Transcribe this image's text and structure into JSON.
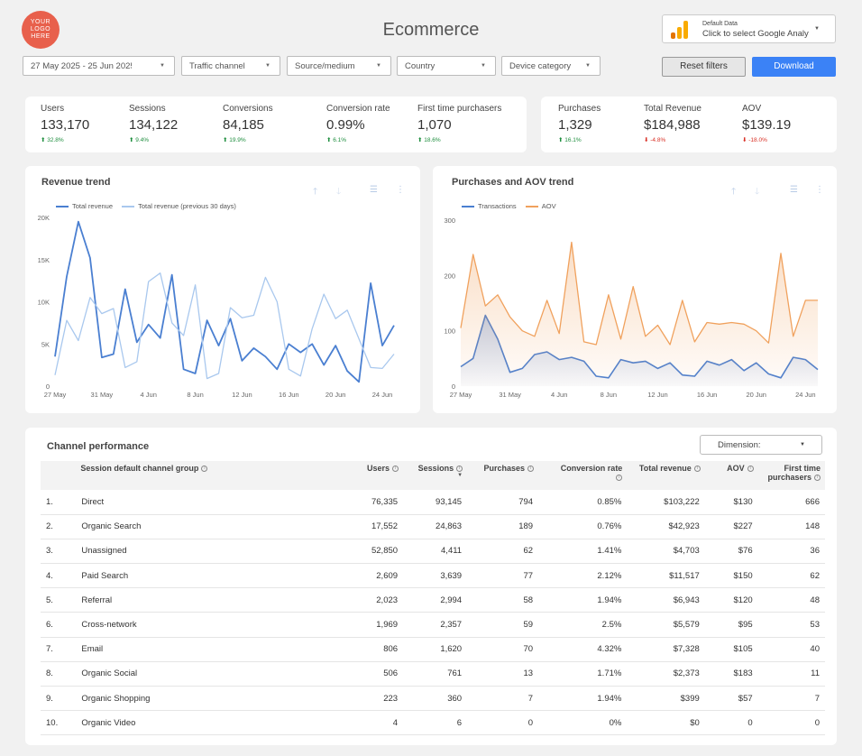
{
  "header": {
    "logo_lines": [
      "YOUR",
      "LOGO",
      "HERE"
    ],
    "title": "Ecommerce",
    "data_source": {
      "label": "Default Data",
      "value": "Click to select Google Analytics"
    }
  },
  "filters": {
    "date_range": "27 May 2025 - 25 Jun 2025",
    "traffic_channel": "Traffic channel",
    "source_medium": "Source/medium",
    "country": "Country",
    "device_category": "Device category",
    "reset_label": "Reset filters",
    "download_label": "Download"
  },
  "kpis_left": [
    {
      "label": "Users",
      "value": "133,170",
      "change": "32.8%",
      "dir": "up"
    },
    {
      "label": "Sessions",
      "value": "134,122",
      "change": "9.4%",
      "dir": "up"
    },
    {
      "label": "Conversions",
      "value": "84,185",
      "change": "19.9%",
      "dir": "up"
    },
    {
      "label": "Conversion rate",
      "value": "0.99%",
      "change": "6.1%",
      "dir": "up"
    },
    {
      "label": "First time purchasers",
      "value": "1,070",
      "change": "18.6%",
      "dir": "up"
    }
  ],
  "kpis_right": [
    {
      "label": "Purchases",
      "value": "1,329",
      "change": "16.1%",
      "dir": "up"
    },
    {
      "label": "Total Revenue",
      "value": "$184,988",
      "change": "-4.8%",
      "dir": "down"
    },
    {
      "label": "AOV",
      "value": "$139.19",
      "change": "-18.0%",
      "dir": "down"
    }
  ],
  "colors": {
    "primary_line": "#4a7fd1",
    "secondary_line": "#a9c8ee",
    "aov_line": "#f0a15d",
    "accent": "#3b82f6"
  },
  "chart_data": [
    {
      "type": "line",
      "title": "Revenue trend",
      "x": [
        "27 May",
        "28 May",
        "29 May",
        "30 May",
        "31 May",
        "1 Jun",
        "2 Jun",
        "3 Jun",
        "4 Jun",
        "5 Jun",
        "6 Jun",
        "7 Jun",
        "8 Jun",
        "9 Jun",
        "10 Jun",
        "11 Jun",
        "12 Jun",
        "13 Jun",
        "14 Jun",
        "15 Jun",
        "16 Jun",
        "17 Jun",
        "18 Jun",
        "19 Jun",
        "20 Jun",
        "21 Jun",
        "22 Jun",
        "23 Jun",
        "24 Jun",
        "25 Jun"
      ],
      "xticks": [
        "27 May",
        "31 May",
        "4 Jun",
        "8 Jun",
        "12 Jun",
        "16 Jun",
        "20 Jun",
        "24 Jun"
      ],
      "yticks": [
        "0",
        "5K",
        "10K",
        "15K",
        "20K"
      ],
      "ylim": [
        0,
        20000
      ],
      "series": [
        {
          "name": "Total revenue",
          "values": [
            3500,
            13000,
            19500,
            15200,
            3400,
            3800,
            11500,
            5200,
            7300,
            5700,
            13200,
            2000,
            1500,
            7800,
            4800,
            8000,
            3000,
            4500,
            3500,
            2000,
            5000,
            4000,
            5000,
            2500,
            4800,
            1800,
            500,
            12200,
            4800,
            7200
          ]
        },
        {
          "name": "Total revenue (previous 30 days)",
          "values": [
            1300,
            7800,
            5400,
            10500,
            8600,
            9200,
            2200,
            2900,
            12400,
            13400,
            7500,
            6000,
            12000,
            900,
            1500,
            9300,
            8100,
            8400,
            12900,
            10000,
            2000,
            1200,
            6800,
            10900,
            8000,
            9000,
            5600,
            2200,
            2100,
            3800
          ]
        }
      ]
    },
    {
      "type": "area",
      "title": "Purchases and AOV trend",
      "x": [
        "27 May",
        "28 May",
        "29 May",
        "30 May",
        "31 May",
        "1 Jun",
        "2 Jun",
        "3 Jun",
        "4 Jun",
        "5 Jun",
        "6 Jun",
        "7 Jun",
        "8 Jun",
        "9 Jun",
        "10 Jun",
        "11 Jun",
        "12 Jun",
        "13 Jun",
        "14 Jun",
        "15 Jun",
        "16 Jun",
        "17 Jun",
        "18 Jun",
        "19 Jun",
        "20 Jun",
        "21 Jun",
        "22 Jun",
        "23 Jun",
        "24 Jun",
        "25 Jun"
      ],
      "xticks": [
        "27 May",
        "31 May",
        "4 Jun",
        "8 Jun",
        "12 Jun",
        "16 Jun",
        "20 Jun",
        "24 Jun"
      ],
      "yticks": [
        "0",
        "100",
        "200",
        "300"
      ],
      "ylim": [
        0,
        300
      ],
      "series": [
        {
          "name": "Transactions",
          "values": [
            35,
            50,
            128,
            85,
            25,
            32,
            57,
            62,
            48,
            52,
            45,
            18,
            15,
            48,
            42,
            45,
            32,
            42,
            20,
            18,
            45,
            38,
            48,
            28,
            42,
            22,
            15,
            52,
            48,
            30
          ]
        },
        {
          "name": "AOV",
          "values": [
            105,
            238,
            145,
            165,
            125,
            100,
            90,
            155,
            95,
            260,
            80,
            75,
            165,
            85,
            180,
            90,
            110,
            75,
            155,
            80,
            115,
            112,
            115,
            112,
            100,
            78,
            240,
            90,
            155,
            155
          ]
        }
      ]
    }
  ],
  "table": {
    "title": "Channel performance",
    "dimension_label": "Dimension:",
    "columns": [
      "Session default channel group",
      "Users",
      "Sessions",
      "Purchases",
      "Conversion rate",
      "Total revenue",
      "AOV",
      "First time purchasers"
    ],
    "rows": [
      {
        "idx": "1.",
        "channel": "Direct",
        "users": "76,335",
        "sessions": "93,145",
        "purchases": "794",
        "conv": "0.85%",
        "revenue": "$103,222",
        "aov": "$130",
        "ftp": "666"
      },
      {
        "idx": "2.",
        "channel": "Organic Search",
        "users": "17,552",
        "sessions": "24,863",
        "purchases": "189",
        "conv": "0.76%",
        "revenue": "$42,923",
        "aov": "$227",
        "ftp": "148"
      },
      {
        "idx": "3.",
        "channel": "Unassigned",
        "users": "52,850",
        "sessions": "4,411",
        "purchases": "62",
        "conv": "1.41%",
        "revenue": "$4,703",
        "aov": "$76",
        "ftp": "36"
      },
      {
        "idx": "4.",
        "channel": "Paid Search",
        "users": "2,609",
        "sessions": "3,639",
        "purchases": "77",
        "conv": "2.12%",
        "revenue": "$11,517",
        "aov": "$150",
        "ftp": "62"
      },
      {
        "idx": "5.",
        "channel": "Referral",
        "users": "2,023",
        "sessions": "2,994",
        "purchases": "58",
        "conv": "1.94%",
        "revenue": "$6,943",
        "aov": "$120",
        "ftp": "48"
      },
      {
        "idx": "6.",
        "channel": "Cross-network",
        "users": "1,969",
        "sessions": "2,357",
        "purchases": "59",
        "conv": "2.5%",
        "revenue": "$5,579",
        "aov": "$95",
        "ftp": "53"
      },
      {
        "idx": "7.",
        "channel": "Email",
        "users": "806",
        "sessions": "1,620",
        "purchases": "70",
        "conv": "4.32%",
        "revenue": "$7,328",
        "aov": "$105",
        "ftp": "40"
      },
      {
        "idx": "8.",
        "channel": "Organic Social",
        "users": "506",
        "sessions": "761",
        "purchases": "13",
        "conv": "1.71%",
        "revenue": "$2,373",
        "aov": "$183",
        "ftp": "11"
      },
      {
        "idx": "9.",
        "channel": "Organic Shopping",
        "users": "223",
        "sessions": "360",
        "purchases": "7",
        "conv": "1.94%",
        "revenue": "$399",
        "aov": "$57",
        "ftp": "7"
      },
      {
        "idx": "10.",
        "channel": "Organic Video",
        "users": "4",
        "sessions": "6",
        "purchases": "0",
        "conv": "0%",
        "revenue": "$0",
        "aov": "0",
        "ftp": "0"
      }
    ]
  }
}
